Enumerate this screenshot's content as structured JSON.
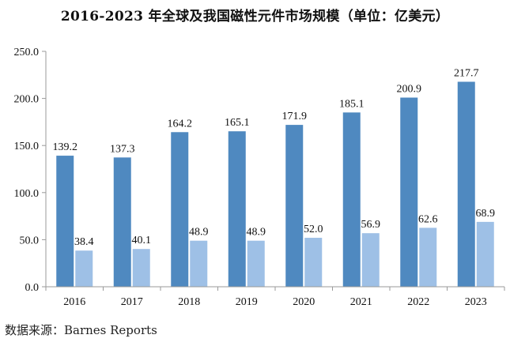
{
  "title": "2016-2023 年全球及我国磁性元件市场规模（单位：亿美元）",
  "source": "数据来源：Barnes Reports",
  "colors": {
    "series_global": "#4f89c0",
    "series_china": "#9ec0e6",
    "axis": "#9a9a9a",
    "text": "#111111"
  },
  "chart_data": {
    "type": "bar",
    "title": "2016-2023 年全球及我国磁性元件市场规模（单位：亿美元）",
    "xlabel": "",
    "ylabel": "",
    "categories": [
      "2016",
      "2017",
      "2018",
      "2019",
      "2020",
      "2021",
      "2022",
      "2023"
    ],
    "series": [
      {
        "values": [
          139.2,
          137.3,
          164.2,
          165.1,
          171.9,
          185.1,
          200.9,
          217.7
        ]
      },
      {
        "values": [
          38.4,
          40.1,
          48.9,
          48.9,
          52.0,
          56.9,
          62.6,
          68.9
        ]
      }
    ],
    "ylim": [
      0,
      250
    ],
    "yticks": [
      "0.0",
      "50.0",
      "100.0",
      "150.0",
      "200.0",
      "250.0"
    ],
    "grid": false,
    "legend": "none"
  }
}
